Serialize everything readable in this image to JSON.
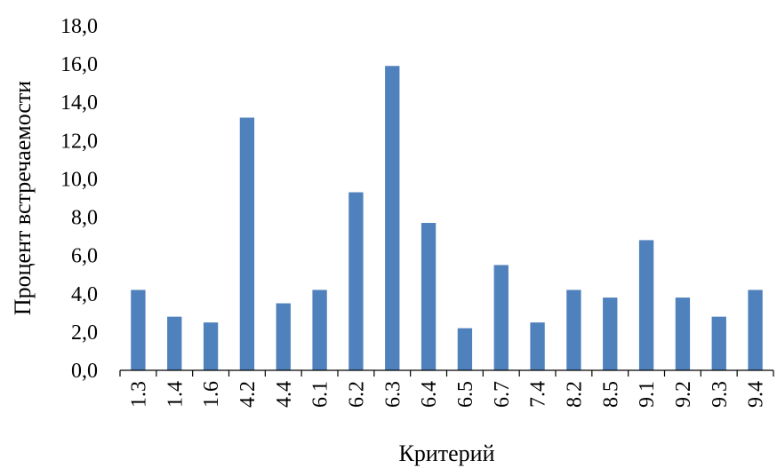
{
  "chart_data": {
    "type": "bar",
    "categories": [
      "1.3",
      "1.4",
      "1.6",
      "4.2",
      "4.4",
      "6.1",
      "6.2",
      "6.3",
      "6.4",
      "6.5",
      "6.7",
      "7.4",
      "8.2",
      "8.5",
      "9.1",
      "9.2",
      "9.3",
      "9.4"
    ],
    "series": [
      {
        "values": [
          4.2,
          2.8,
          2.5,
          13.2,
          3.5,
          4.2,
          9.3,
          15.9,
          7.7,
          2.2,
          5.5,
          2.5,
          4.2,
          3.8,
          6.8,
          3.8,
          2.8,
          4.2
        ]
      }
    ],
    "ylim": [
      0,
      18
    ],
    "yticks": [
      "0,0",
      "2,0",
      "4,0",
      "6,0",
      "8,0",
      "10,0",
      "12,0",
      "14,0",
      "16,0",
      "18,0"
    ],
    "xlabel": "Критерий",
    "ylabel": "Процент встречаемости",
    "bar_color": "#4F81BD",
    "grid": false,
    "legend": "none"
  }
}
